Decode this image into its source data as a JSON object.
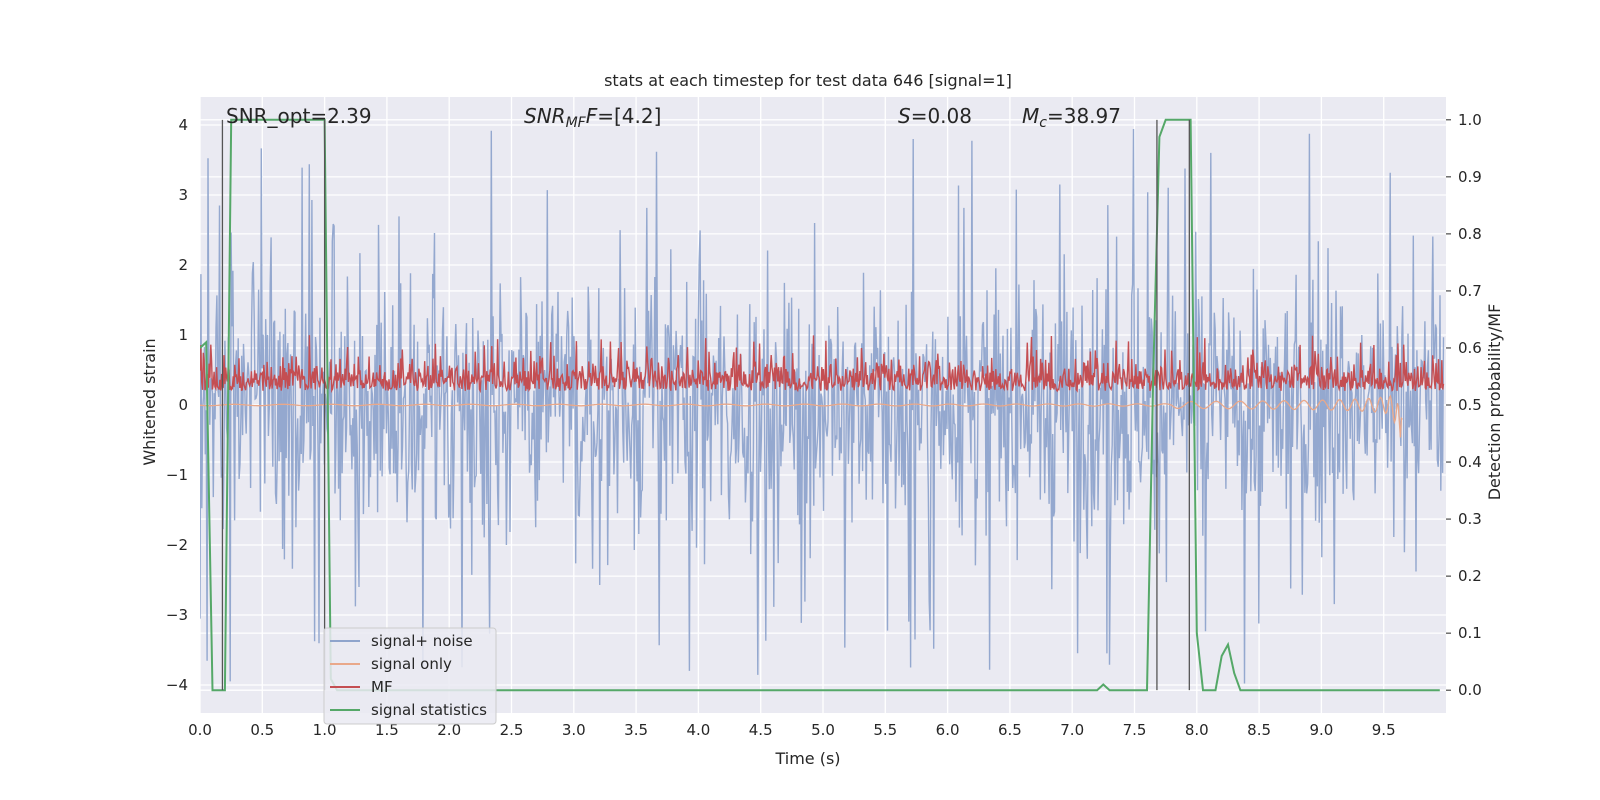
{
  "chart_data": {
    "type": "line",
    "title": "stats at each timestep for test data 646 [signal=1]",
    "xlabel": "Time (s)",
    "ylabel_left": "Whitened strain",
    "ylabel_right": "Detection probability/MF",
    "xlim": [
      0.0,
      10.0
    ],
    "ylim_left": [
      -4.4,
      4.4
    ],
    "ylim_right": [
      -0.04,
      1.04
    ],
    "x_ticks": [
      "0.0",
      "0.5",
      "1.0",
      "1.5",
      "2.0",
      "2.5",
      "3.0",
      "3.5",
      "4.0",
      "4.5",
      "5.0",
      "5.5",
      "6.0",
      "6.5",
      "7.0",
      "7.5",
      "8.0",
      "8.5",
      "9.0",
      "9.5"
    ],
    "y_ticks_left": [
      "−4",
      "−3",
      "−2",
      "−1",
      "0",
      "1",
      "2",
      "3",
      "4"
    ],
    "y_ticks_right": [
      "0.0",
      "0.1",
      "0.2",
      "0.3",
      "0.4",
      "0.5",
      "0.6",
      "0.7",
      "0.8",
      "0.9",
      "1.0"
    ],
    "grid": true,
    "legend_position": "lower-left",
    "annotations": {
      "snr_opt": "SNR_opt=2.39",
      "snr_mf_sym": "SNR",
      "snr_mf_sub": "MF",
      "snr_mf_val": "=[4.2]",
      "s_sym": "S",
      "s_val": "=0.08",
      "mc_sym": "M",
      "mc_sub": "c",
      "mc_val": "=38.97"
    },
    "markers_x": [
      0.18,
      1.0,
      7.68,
      7.94
    ],
    "series": [
      {
        "name": "signal+ noise",
        "color": "#8fa4cc",
        "axis": "left",
        "kind": "noise",
        "amplitude_typical": 1.6,
        "peaks_max": 4.0
      },
      {
        "name": "signal only",
        "color": "#e9a88a",
        "axis": "left",
        "kind": "chirp",
        "merger_time": 9.65,
        "peak_amplitude": -0.55
      },
      {
        "name": "MF",
        "color": "#c44e52",
        "axis": "left",
        "kind": "mf",
        "baseline": 0.2,
        "peak_max": 1.0
      },
      {
        "name": "signal statistics",
        "color": "#55a868",
        "axis": "right",
        "x": [
          0.0,
          0.05,
          0.1,
          0.15,
          0.2,
          0.25,
          0.3,
          0.35,
          0.4,
          0.45,
          0.5,
          0.55,
          0.6,
          0.65,
          0.7,
          0.75,
          0.8,
          0.85,
          0.9,
          0.95,
          1.0,
          1.05,
          1.1,
          1.15,
          1.2,
          7.2,
          7.25,
          7.3,
          7.35,
          7.6,
          7.65,
          7.7,
          7.75,
          7.8,
          7.85,
          7.9,
          7.95,
          8.0,
          8.05,
          8.1,
          8.15,
          8.2,
          8.25,
          8.3,
          8.35,
          8.4,
          8.45,
          8.5,
          9.95
        ],
        "values": [
          0.6,
          0.61,
          0.0,
          0.0,
          0.0,
          1.0,
          1.0,
          1.0,
          1.0,
          1.0,
          1.0,
          1.0,
          1.0,
          1.0,
          1.0,
          1.0,
          1.0,
          1.0,
          1.0,
          1.0,
          1.0,
          0.02,
          0.0,
          0.0,
          0.0,
          0.0,
          0.01,
          0.0,
          0.0,
          0.0,
          0.55,
          0.97,
          1.0,
          1.0,
          1.0,
          1.0,
          1.0,
          0.1,
          0.0,
          0.0,
          0.0,
          0.06,
          0.08,
          0.03,
          0.0,
          0.0,
          0.0,
          0.0,
          0.0
        ]
      }
    ]
  }
}
